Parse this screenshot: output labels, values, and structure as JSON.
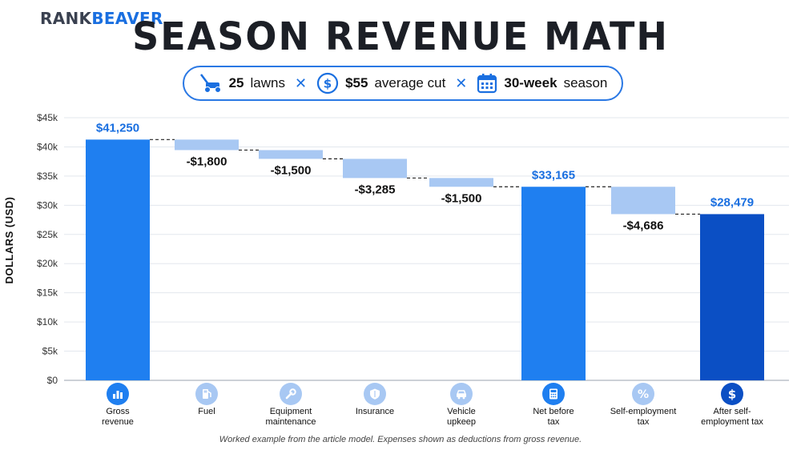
{
  "brand": {
    "part1": "RANK",
    "part2": "BEAVER"
  },
  "title": "SEASON REVENUE MATH",
  "assumptions": [
    {
      "icon": "lawn-mower-icon",
      "value": "25",
      "label": "lawns"
    },
    {
      "icon": "dollar-icon",
      "value": "$55",
      "label": "average cut"
    },
    {
      "icon": "calendar-icon",
      "value": "30-week",
      "label": "season"
    }
  ],
  "footnote": "Worked example from the article model. Expenses shown as deductions from gross revenue.",
  "colors": {
    "total": "#1f7ff0",
    "final": "#0b4fc4",
    "deduction": "#a8c8f3",
    "accent": "#1a6fe0"
  },
  "chart_data": {
    "type": "bar",
    "subtype": "waterfall",
    "ylabel": "DOLLARS (USD)",
    "ylim": [
      0,
      45000
    ],
    "yticks": [
      0,
      5000,
      10000,
      15000,
      20000,
      25000,
      30000,
      35000,
      40000,
      45000
    ],
    "ytick_labels": [
      "$0",
      "$5k",
      "$10k",
      "$15k",
      "$20k",
      "$25k",
      "$30k",
      "$35k",
      "$40k",
      "$45k"
    ],
    "grid": true,
    "steps": [
      {
        "category": "Gross\nrevenue",
        "kind": "total",
        "value": 41250,
        "label": "$41,250",
        "icon": "bar-chart-icon"
      },
      {
        "category": "Fuel",
        "kind": "deduction",
        "value": -1800,
        "label": "-$1,800",
        "icon": "fuel-pump-icon"
      },
      {
        "category": "Equipment\nmaintenance",
        "kind": "deduction",
        "value": -1500,
        "label": "-$1,500",
        "icon": "wrench-icon"
      },
      {
        "category": "Insurance",
        "kind": "deduction",
        "value": -3285,
        "label": "-$3,285",
        "icon": "shield-icon"
      },
      {
        "category": "Vehicle\nupkeep",
        "kind": "deduction",
        "value": -1500,
        "label": "-$1,500",
        "icon": "car-icon"
      },
      {
        "category": "Net before\ntax",
        "kind": "total",
        "value": 33165,
        "label": "$33,165",
        "icon": "calculator-icon"
      },
      {
        "category": "Self-employment\ntax",
        "kind": "deduction",
        "value": -4686,
        "label": "-$4,686",
        "icon": "percent-icon"
      },
      {
        "category": "After self-\nemployment tax",
        "kind": "final",
        "value": 28479,
        "label": "$28,479",
        "icon": "dollar-icon"
      }
    ]
  }
}
